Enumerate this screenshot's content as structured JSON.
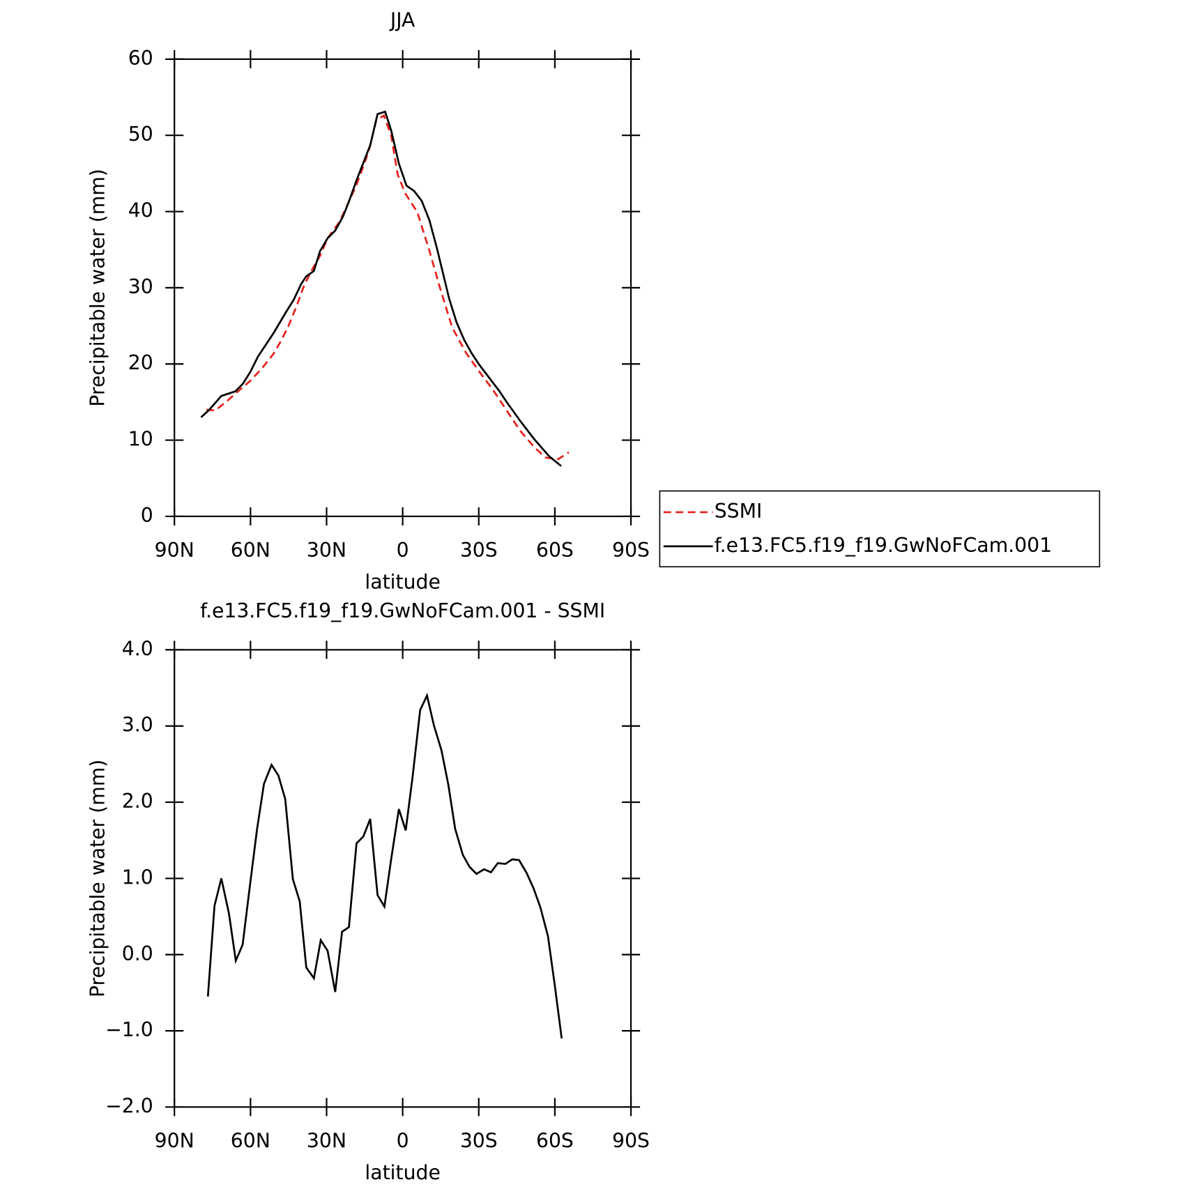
{
  "chart_data": [
    {
      "type": "line",
      "title": "JJA",
      "xlabel": "latitude",
      "ylabel": "Precipitable water (mm)",
      "xlim": [
        90,
        -90
      ],
      "ylim": [
        0,
        60
      ],
      "xticks": [
        {
          "value": 90,
          "label": "90N"
        },
        {
          "value": 60,
          "label": "60N"
        },
        {
          "value": 30,
          "label": "30N"
        },
        0,
        {
          "value": -30,
          "label": "30S"
        },
        {
          "value": -60,
          "label": "60S"
        },
        {
          "value": -90,
          "label": "90S"
        }
      ],
      "yticks": [
        0,
        10,
        20,
        30,
        40,
        50,
        60
      ],
      "legend": "right",
      "series": [
        {
          "name": "SSMI",
          "color": "#e8201c",
          "dash": true,
          "x": [
            77.4,
            73.9,
            69,
            64.3,
            60,
            55.3,
            51,
            48,
            45,
            41.6,
            39.2,
            36.2,
            32.6,
            29.6,
            24.8,
            21.8,
            18.2,
            13.4,
            10.4,
            7.4,
            4.5,
            2,
            -1,
            -5.8,
            -10.5,
            -14.7,
            -19.5,
            -24.9,
            -30.2,
            -35.6,
            -40.4,
            -46.4,
            -52.4,
            -56.5,
            -61.3,
            -65.5
          ],
          "values": [
            14.0,
            13.9,
            15.2,
            16.6,
            17.8,
            19.5,
            21.3,
            23.0,
            25.0,
            27.8,
            30.0,
            32.1,
            34.2,
            36.5,
            38.7,
            40.9,
            43.5,
            47.9,
            52.0,
            52.6,
            49.9,
            44.9,
            42.4,
            39.9,
            34.9,
            30.0,
            24.8,
            21.5,
            19.0,
            16.6,
            14.2,
            11.2,
            8.9,
            7.7,
            7.5,
            8.4
          ]
        },
        {
          "name": "f.e13.FC5.f19_f19.GwNoFCam.001",
          "color": "#000000",
          "dash": false,
          "x": [
            79.5,
            76.5,
            71.5,
            66,
            63,
            60,
            57,
            51,
            46,
            43,
            40,
            38,
            35,
            32.6,
            29.6,
            26.6,
            23.6,
            21.2,
            18.2,
            12.8,
            9.9,
            6.9,
            4.5,
            1.5,
            -1.5,
            -4.5,
            -7.5,
            -10.5,
            -13.5,
            -18.3,
            -21.2,
            -24.2,
            -27.2,
            -30.2,
            -35,
            -38,
            -41,
            -46.4,
            -51.7,
            -57.7,
            -62.5
          ],
          "values": [
            13.0,
            13.9,
            15.8,
            16.4,
            17.4,
            19.0,
            21.0,
            24.0,
            26.8,
            28.4,
            30.5,
            31.5,
            32.2,
            34.8,
            36.5,
            37.5,
            39.3,
            41.3,
            44.1,
            48.7,
            52.8,
            53.1,
            50.6,
            46.3,
            43.4,
            42.7,
            41.4,
            38.9,
            35.2,
            28.6,
            25.5,
            23.2,
            21.4,
            19.9,
            17.8,
            16.5,
            15.0,
            12.5,
            10.2,
            7.9,
            6.6
          ]
        }
      ]
    },
    {
      "type": "line",
      "title": "f.e13.FC5.f19_f19.GwNoFCam.001 - SSMI",
      "xlabel": "latitude",
      "ylabel": "Precipitable water (mm)",
      "xlim": [
        90,
        -90
      ],
      "ylim": [
        -2,
        4
      ],
      "xticks": [
        {
          "value": 90,
          "label": "90N"
        },
        {
          "value": 60,
          "label": "60N"
        },
        {
          "value": 30,
          "label": "30N"
        },
        0,
        {
          "value": -30,
          "label": "30S"
        },
        {
          "value": -60,
          "label": "60S"
        },
        {
          "value": -90,
          "label": "90S"
        }
      ],
      "yticks": [
        {
          "value": -2,
          "label": "−2.0"
        },
        {
          "value": -1,
          "label": "−1.0"
        },
        {
          "value": 0,
          "label": "0.0"
        },
        {
          "value": 1,
          "label": "1.0"
        },
        {
          "value": 2,
          "label": "2.0"
        },
        {
          "value": 3,
          "label": "3.0"
        },
        {
          "value": 4,
          "label": "4.0"
        }
      ],
      "series": [
        {
          "color": "#000000",
          "dash": false,
          "x": [
            76.8,
            74.2,
            71.5,
            68.5,
            65.8,
            63.1,
            60.1,
            57.4,
            54.7,
            51.7,
            49,
            46.3,
            43.3,
            40.6,
            38,
            35,
            32.3,
            29.6,
            26.6,
            23.9,
            21.2,
            18.2,
            15.5,
            12.8,
            9.9,
            7.2,
            4.5,
            1.5,
            -1.2,
            -3.9,
            -6.9,
            -9.6,
            -12.3,
            -15.3,
            -18,
            -20.7,
            -23.7,
            -26.4,
            -29.1,
            -32.1,
            -34.8,
            -37.5,
            -40.5,
            -43.2,
            -45.9,
            -48.9,
            -51.6,
            -54.3,
            -57.3,
            -60,
            -62.7
          ],
          "values": [
            -0.55,
            0.64,
            1.0,
            0.54,
            -0.08,
            0.13,
            0.94,
            1.65,
            2.24,
            2.49,
            2.35,
            2.04,
            0.99,
            0.7,
            -0.17,
            -0.31,
            0.19,
            0.05,
            -0.49,
            0.3,
            0.36,
            1.46,
            1.55,
            1.78,
            0.78,
            0.63,
            1.26,
            1.91,
            1.63,
            2.33,
            3.21,
            3.4,
            3.01,
            2.68,
            2.23,
            1.65,
            1.31,
            1.15,
            1.06,
            1.12,
            1.08,
            1.2,
            1.19,
            1.25,
            1.24,
            1.07,
            0.87,
            0.62,
            0.24,
            -0.41,
            -1.1
          ]
        }
      ]
    }
  ]
}
